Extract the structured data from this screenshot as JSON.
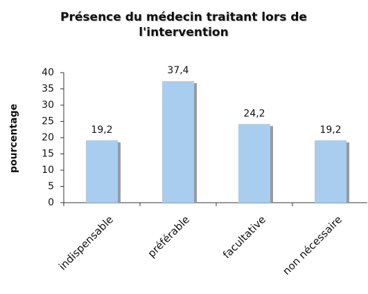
{
  "chart_data": {
    "type": "bar",
    "title": "Présence du médecin traitant lors de l'intervention",
    "y_label": "pourcentage",
    "categories": [
      "indispensable",
      "préférable",
      "facultative",
      "non nécessaire"
    ],
    "values": [
      19.2,
      37.4,
      24.2,
      19.2
    ],
    "value_labels": [
      "19,2",
      "37,4",
      "24,2",
      "19,2"
    ],
    "color": "#a8cdee",
    "ylim": [
      0,
      40
    ],
    "yticks": [
      0,
      5,
      10,
      15,
      20,
      25,
      30,
      35,
      40
    ],
    "grid": false
  }
}
